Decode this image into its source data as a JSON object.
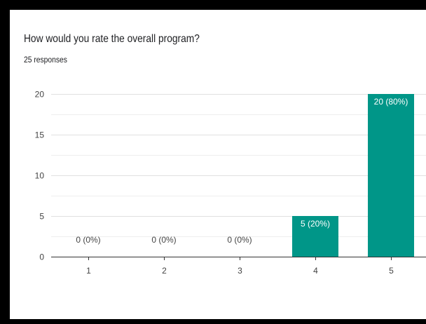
{
  "question": {
    "title": "How would you rate the overall program?",
    "responses": "25 responses"
  },
  "colors": {
    "bar": "#009688",
    "grid_major": "#e0e0e0",
    "grid_minor": "#eeeeee",
    "axis": "#333333",
    "text": "#444444",
    "frame": "#000000"
  },
  "chart_data": {
    "type": "bar",
    "title": "How would you rate the overall program?",
    "categories": [
      "1",
      "2",
      "3",
      "4",
      "5"
    ],
    "values": [
      0,
      0,
      0,
      5,
      20
    ],
    "data_labels": [
      "0 (0%)",
      "0 (0%)",
      "0 (0%)",
      "5 (20%)",
      "20 (80%)"
    ],
    "y_ticks": [
      0,
      5,
      10,
      15,
      20
    ],
    "ylim": [
      0,
      20
    ],
    "xlabel": "",
    "ylabel": "",
    "grid": true
  }
}
